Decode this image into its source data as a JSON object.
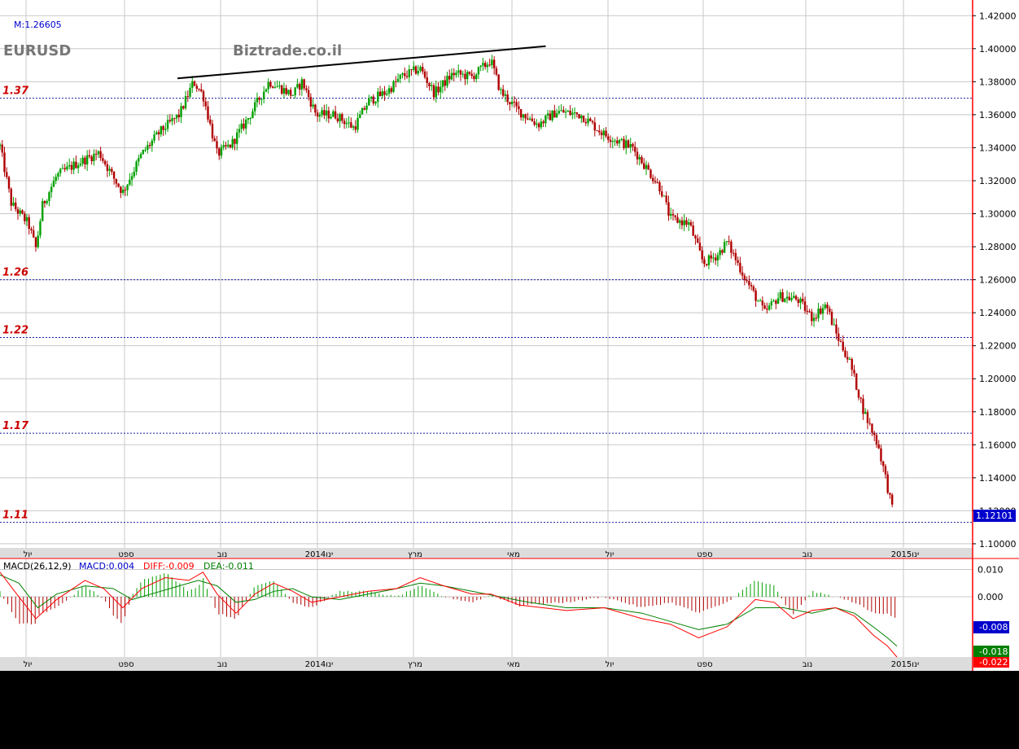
{
  "header": {
    "symbol": "EURUSD",
    "watermark": "Biztrade.co.il",
    "mode_readout": "M:1.26605"
  },
  "colors": {
    "up": "#00a000",
    "down": "#b00000",
    "grid": "#c8c8c8",
    "level_line": "#1a1aa0",
    "level_label": "#cc0000",
    "axis": "#ff0000",
    "current_price_bg": "#0000cc",
    "diff": "#ff0000",
    "dea": "#008000",
    "macd_label": "#0000cc"
  },
  "chart_data": [
    {
      "type": "candlestick",
      "title": "EURUSD",
      "ylim": [
        1.0975,
        1.4295
      ],
      "y_ticks": [
        "1.42000",
        "1.40000",
        "1.38000",
        "1.36000",
        "1.34000",
        "1.32000",
        "1.30000",
        "1.28000",
        "1.26000",
        "1.24000",
        "1.22000",
        "1.20000",
        "1.18000",
        "1.16000",
        "1.14000",
        "1.12000",
        "1.10000"
      ],
      "x_tick_labels": [
        "יול",
        "ספט",
        "נוב",
        "2014ינו",
        "מרץ",
        "מאי",
        "יול",
        "ספט",
        "נוב",
        "2015ינו"
      ],
      "grid": true,
      "horizontal_levels": [
        {
          "label": "1.37",
          "value": 1.37
        },
        {
          "label": "1.26",
          "value": 1.26
        },
        {
          "label": "1.22",
          "value": 1.225
        },
        {
          "label": "1.17",
          "value": 1.167
        },
        {
          "label": "1.11",
          "value": 1.113
        }
      ],
      "trendline": {
        "from": [
          0.188,
          1.382
        ],
        "to": [
          0.578,
          1.4015
        ]
      },
      "current_price": "1.12101",
      "trend_path": [
        [
          0.0,
          1.341
        ],
        [
          0.012,
          1.306
        ],
        [
          0.03,
          1.294
        ],
        [
          0.038,
          1.279
        ],
        [
          0.045,
          1.305
        ],
        [
          0.06,
          1.323
        ],
        [
          0.08,
          1.33
        ],
        [
          0.105,
          1.337
        ],
        [
          0.12,
          1.322
        ],
        [
          0.13,
          1.313
        ],
        [
          0.15,
          1.336
        ],
        [
          0.17,
          1.35
        ],
        [
          0.19,
          1.36
        ],
        [
          0.205,
          1.38
        ],
        [
          0.215,
          1.372
        ],
        [
          0.23,
          1.336
        ],
        [
          0.245,
          1.342
        ],
        [
          0.265,
          1.36
        ],
        [
          0.285,
          1.38
        ],
        [
          0.31,
          1.372
        ],
        [
          0.32,
          1.38
        ],
        [
          0.335,
          1.36
        ],
        [
          0.355,
          1.36
        ],
        [
          0.375,
          1.352
        ],
        [
          0.39,
          1.368
        ],
        [
          0.41,
          1.374
        ],
        [
          0.425,
          1.383
        ],
        [
          0.445,
          1.388
        ],
        [
          0.46,
          1.373
        ],
        [
          0.48,
          1.385
        ],
        [
          0.5,
          1.383
        ],
        [
          0.52,
          1.393
        ],
        [
          0.53,
          1.374
        ],
        [
          0.55,
          1.362
        ],
        [
          0.57,
          1.354
        ],
        [
          0.59,
          1.362
        ],
        [
          0.615,
          1.36
        ],
        [
          0.64,
          1.348
        ],
        [
          0.67,
          1.34
        ],
        [
          0.7,
          1.315
        ],
        [
          0.71,
          1.297
        ],
        [
          0.73,
          1.294
        ],
        [
          0.745,
          1.27
        ],
        [
          0.76,
          1.275
        ],
        [
          0.77,
          1.283
        ],
        [
          0.79,
          1.26
        ],
        [
          0.81,
          1.24
        ],
        [
          0.825,
          1.25
        ],
        [
          0.845,
          1.248
        ],
        [
          0.86,
          1.237
        ],
        [
          0.875,
          1.245
        ],
        [
          0.885,
          1.228
        ],
        [
          0.9,
          1.21
        ],
        [
          0.915,
          1.18
        ],
        [
          0.93,
          1.16
        ],
        [
          0.938,
          1.14
        ],
        [
          0.945,
          1.121
        ]
      ]
    },
    {
      "type": "macd",
      "title": "MACD(26,12,9)",
      "readouts": {
        "macd": "MACD:0.004",
        "diff": "DIFF:-0.009",
        "dea": "DEA:-0.011"
      },
      "ylim": [
        -0.022,
        0.014
      ],
      "y_ticks": [
        "0.010",
        "0.000"
      ],
      "badges": {
        "blue": "-0.008",
        "green": "-0.018",
        "red": "-0.022"
      },
      "x_tick_labels": [
        "יול",
        "ספט",
        "נוב",
        "2014ינו",
        "מרץ",
        "מאי",
        "יול",
        "ספט",
        "נוב",
        "2015ינו"
      ],
      "diff_path": [
        [
          0.0,
          0.009
        ],
        [
          0.02,
          0.0
        ],
        [
          0.038,
          -0.008
        ],
        [
          0.06,
          -0.001
        ],
        [
          0.09,
          0.006
        ],
        [
          0.11,
          0.003
        ],
        [
          0.13,
          -0.004
        ],
        [
          0.15,
          0.003
        ],
        [
          0.175,
          0.007
        ],
        [
          0.2,
          0.006
        ],
        [
          0.215,
          0.009
        ],
        [
          0.23,
          0.001
        ],
        [
          0.25,
          -0.006
        ],
        [
          0.27,
          0.001
        ],
        [
          0.29,
          0.005
        ],
        [
          0.31,
          0.002
        ],
        [
          0.33,
          -0.002
        ],
        [
          0.36,
          0.0
        ],
        [
          0.39,
          0.002
        ],
        [
          0.42,
          0.003
        ],
        [
          0.445,
          0.007
        ],
        [
          0.47,
          0.004
        ],
        [
          0.5,
          0.001
        ],
        [
          0.52,
          0.001
        ],
        [
          0.55,
          -0.003
        ],
        [
          0.6,
          -0.005
        ],
        [
          0.64,
          -0.004
        ],
        [
          0.68,
          -0.008
        ],
        [
          0.71,
          -0.01
        ],
        [
          0.74,
          -0.015
        ],
        [
          0.77,
          -0.011
        ],
        [
          0.8,
          -0.001
        ],
        [
          0.82,
          -0.002
        ],
        [
          0.84,
          -0.008
        ],
        [
          0.86,
          -0.005
        ],
        [
          0.885,
          -0.004
        ],
        [
          0.905,
          -0.007
        ],
        [
          0.925,
          -0.014
        ],
        [
          0.94,
          -0.018
        ],
        [
          0.95,
          -0.022
        ]
      ],
      "dea_path": [
        [
          0.0,
          0.008
        ],
        [
          0.02,
          0.005
        ],
        [
          0.04,
          -0.004
        ],
        [
          0.06,
          0.001
        ],
        [
          0.09,
          0.004
        ],
        [
          0.12,
          0.003
        ],
        [
          0.14,
          -0.001
        ],
        [
          0.16,
          0.001
        ],
        [
          0.19,
          0.004
        ],
        [
          0.21,
          0.006
        ],
        [
          0.23,
          0.004
        ],
        [
          0.25,
          -0.002
        ],
        [
          0.27,
          -0.001
        ],
        [
          0.29,
          0.002
        ],
        [
          0.31,
          0.003
        ],
        [
          0.33,
          0.0
        ],
        [
          0.36,
          -0.001
        ],
        [
          0.39,
          0.001
        ],
        [
          0.42,
          0.003
        ],
        [
          0.445,
          0.005
        ],
        [
          0.47,
          0.004
        ],
        [
          0.5,
          0.002
        ],
        [
          0.53,
          0.0
        ],
        [
          0.56,
          -0.002
        ],
        [
          0.6,
          -0.004
        ],
        [
          0.64,
          -0.004
        ],
        [
          0.68,
          -0.006
        ],
        [
          0.71,
          -0.009
        ],
        [
          0.74,
          -0.012
        ],
        [
          0.77,
          -0.01
        ],
        [
          0.8,
          -0.004
        ],
        [
          0.83,
          -0.004
        ],
        [
          0.86,
          -0.006
        ],
        [
          0.885,
          -0.004
        ],
        [
          0.905,
          -0.006
        ],
        [
          0.925,
          -0.011
        ],
        [
          0.94,
          -0.015
        ],
        [
          0.95,
          -0.018
        ]
      ]
    }
  ]
}
